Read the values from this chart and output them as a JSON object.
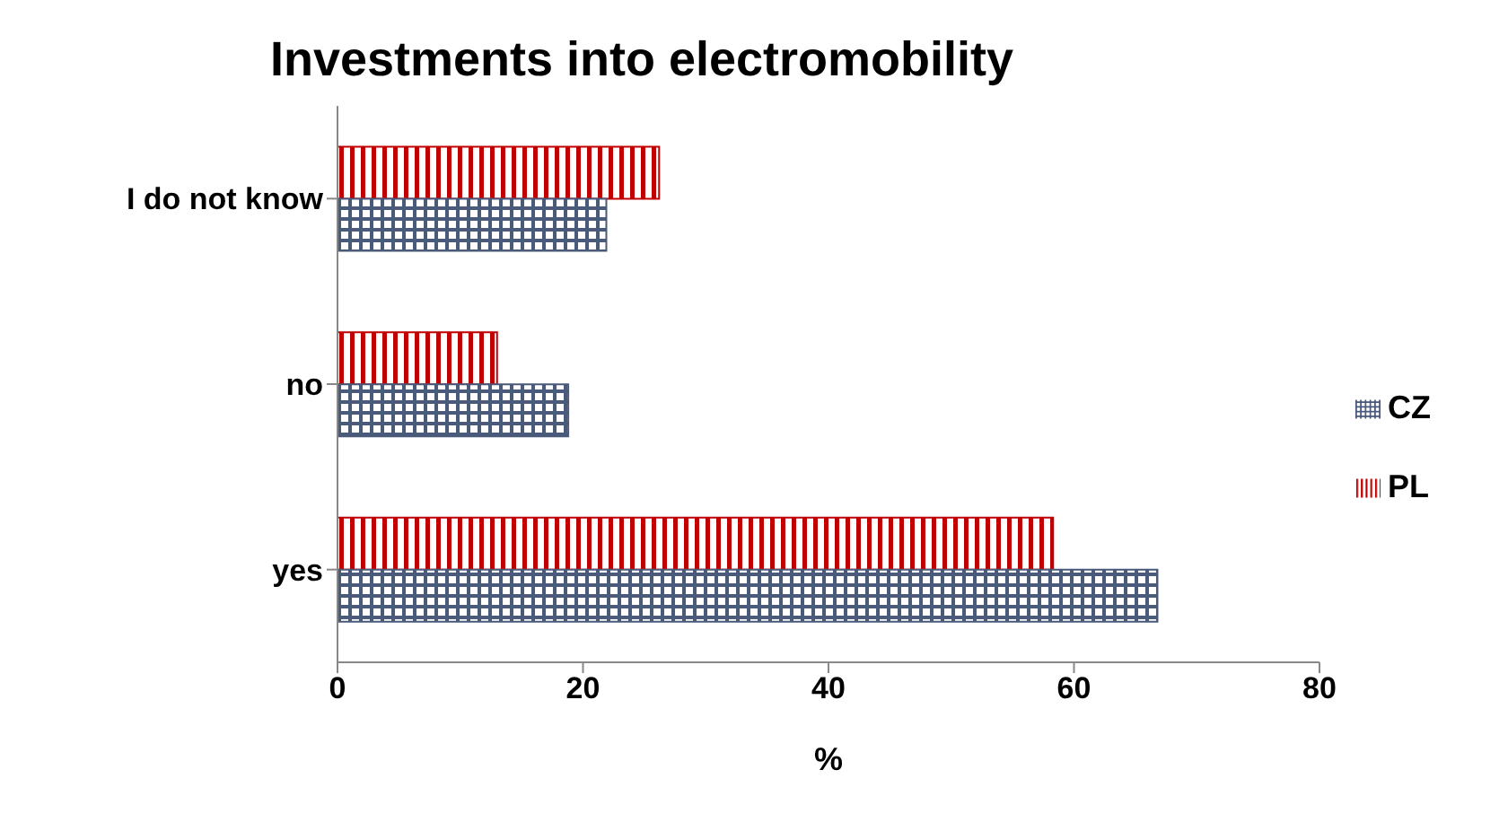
{
  "chart_data": {
    "type": "bar",
    "orientation": "horizontal",
    "title": "Investments into electromobility",
    "xlabel": "%",
    "categories": [
      "I do not know",
      "no",
      "yes"
    ],
    "series": [
      {
        "name": "PL",
        "color": "#c00000",
        "values": [
          26.2,
          13,
          58.3
        ]
      },
      {
        "name": "CZ",
        "color": "#4a5a7a",
        "values": [
          21.9,
          18.8,
          66.8
        ]
      }
    ],
    "xlim": [
      0,
      80
    ],
    "xticks": [
      0,
      20,
      40,
      60,
      80
    ],
    "grid": false,
    "legend": "right"
  }
}
